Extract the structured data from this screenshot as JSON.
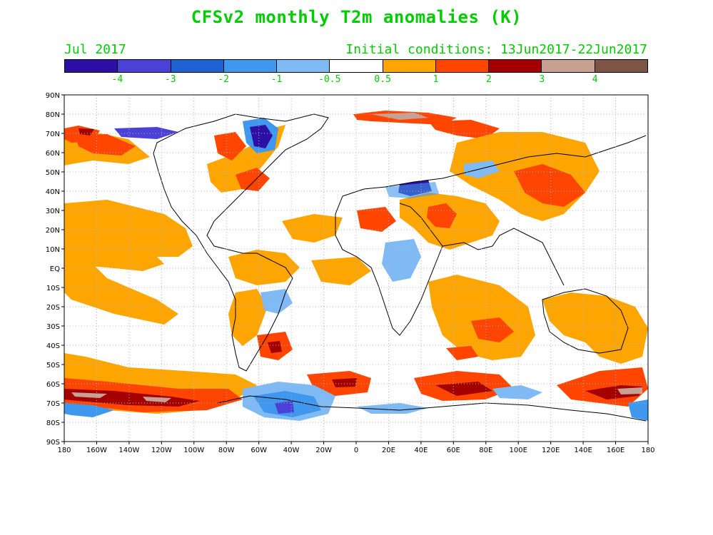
{
  "title": "CFSv2 monthly T2m anomalies (K)",
  "month_label": "Jul 2017",
  "initial_conditions": "Initial conditions: 13Jun2017-22Jun2017",
  "colorbar": {
    "colors": [
      "#2e0fa3",
      "#4c41d6",
      "#1f62d3",
      "#3f97ee",
      "#7fbaf5",
      "#ffffff",
      "#ffa500",
      "#ff4500",
      "#a50000",
      "#c8a195",
      "#7e5444"
    ],
    "labels": [
      "-4",
      "-3",
      "-2",
      "-1",
      "-0.5",
      "0.5",
      "1",
      "2",
      "3",
      "4"
    ]
  },
  "map": {
    "lat_labels": [
      "90N",
      "80N",
      "70N",
      "60N",
      "50N",
      "40N",
      "30N",
      "20N",
      "10N",
      "EQ",
      "10S",
      "20S",
      "30S",
      "40S",
      "50S",
      "60S",
      "70S",
      "80S",
      "90S"
    ],
    "lon_labels": [
      "180",
      "160W",
      "140W",
      "120W",
      "100W",
      "80W",
      "60W",
      "40W",
      "20W",
      "0",
      "20E",
      "40E",
      "60E",
      "80E",
      "100E",
      "120E",
      "140E",
      "160E",
      "180"
    ]
  }
}
